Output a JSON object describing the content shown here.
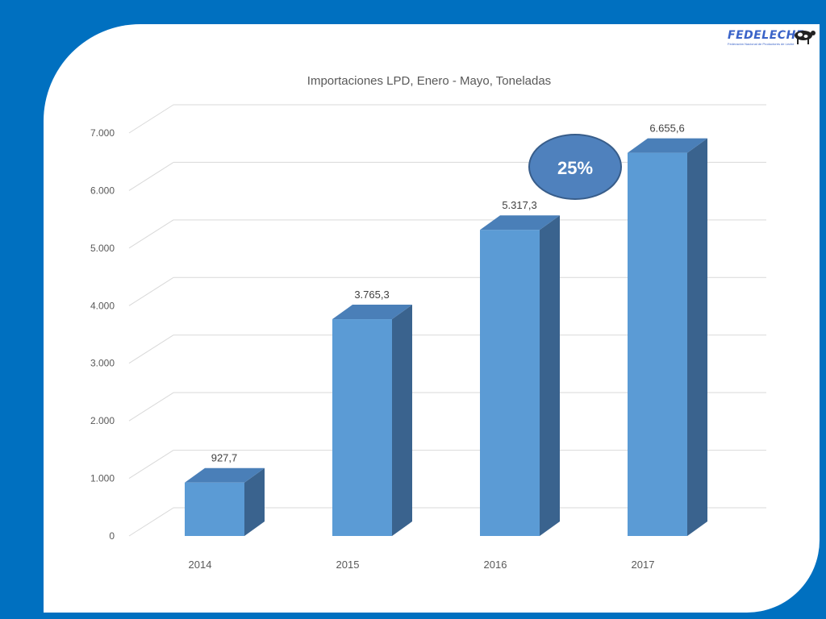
{
  "logo": {
    "name": "FEDELECHE",
    "subtitle": "Federación Nacional de Productores de Leche"
  },
  "badge": {
    "text": "25%"
  },
  "chart_data": {
    "type": "bar",
    "title": "Importaciones LPD, Enero - Mayo, Toneladas",
    "categories": [
      "2014",
      "2015",
      "2016",
      "2017"
    ],
    "values": [
      927.7,
      3765.3,
      5317.3,
      6655.6
    ],
    "data_labels": [
      "927,7",
      "3.765,3",
      "5.317,3",
      "6.655,6"
    ],
    "yticks": [
      0,
      1000,
      2000,
      3000,
      4000,
      5000,
      6000,
      7000
    ],
    "ytick_labels": [
      "0",
      "1.000",
      "2.000",
      "3.000",
      "4.000",
      "5.000",
      "6.000",
      "7.000"
    ],
    "ylim": [
      0,
      7000
    ],
    "grid": true,
    "legend": "none",
    "xlabel": "",
    "ylabel": "",
    "colors": {
      "bar_front": "#5b9bd5",
      "bar_top": "#4a7fb8",
      "bar_side": "#3a638e",
      "grid": "#d9d9d9",
      "badge": "#4f81bd",
      "badge_border": "#385d8a"
    }
  }
}
